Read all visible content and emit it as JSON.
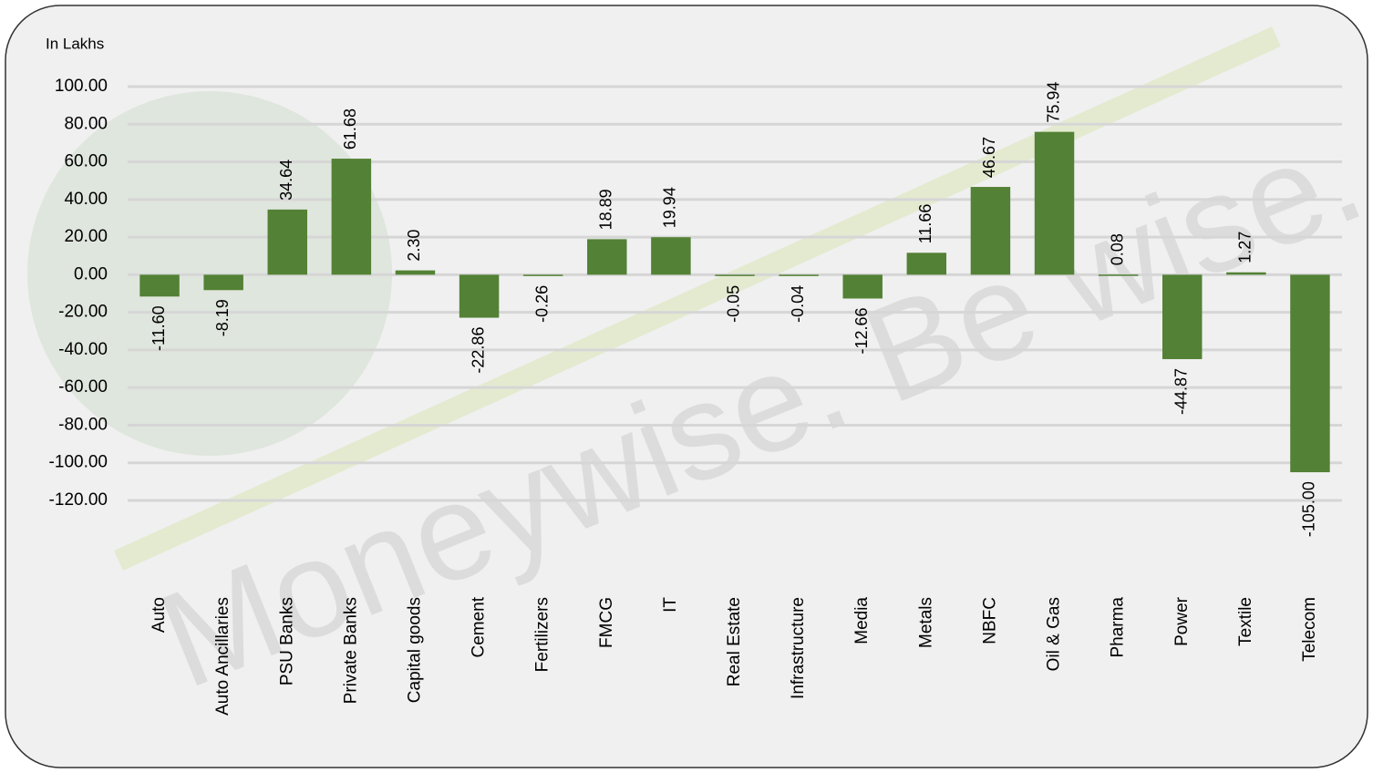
{
  "chart_data": {
    "type": "bar",
    "watermark": "Moneywise. Be wise.",
    "y_label": "In Lakhs",
    "categories": [
      "Auto",
      "Auto Ancillaries",
      "PSU Banks",
      "Private Banks",
      "Capital goods",
      "Cement",
      "Fertilizers",
      "FMCG",
      "IT",
      "Real Estate",
      "Infrastructure",
      "Media",
      "Metals",
      "NBFC",
      "Oil & Gas",
      "Pharma",
      "Power",
      "Textile",
      "Telecom"
    ],
    "values": [
      -11.6,
      -8.19,
      34.64,
      61.68,
      2.3,
      -22.86,
      -0.26,
      18.89,
      19.94,
      -0.05,
      -0.04,
      -12.66,
      11.66,
      46.67,
      75.94,
      0.08,
      -44.87,
      1.27,
      -105
    ],
    "value_labels": [
      "-11.60",
      "-8.19",
      "34.64",
      "61.68",
      "2.30",
      "-22.86",
      "-0.26",
      "18.89",
      "19.94",
      "-0.05",
      "-0.04",
      "-12.66",
      "11.66",
      "46.67",
      "75.94",
      "0.08",
      "-44.87",
      "1.27",
      "-105.00"
    ],
    "color": "#538135",
    "ylim": [
      -120,
      100
    ],
    "yticks": [
      {
        "value": 100,
        "label": "100.00"
      },
      {
        "value": 80,
        "label": "80.00"
      },
      {
        "value": 60,
        "label": "60.00"
      },
      {
        "value": 40,
        "label": "40.00"
      },
      {
        "value": 20,
        "label": "20.00"
      },
      {
        "value": 0,
        "label": "0.00"
      },
      {
        "value": -20,
        "label": "-20.00"
      },
      {
        "value": -40,
        "label": "-40.00"
      },
      {
        "value": -60,
        "label": "-60.00"
      },
      {
        "value": -80,
        "label": "-80.00"
      },
      {
        "value": -100,
        "label": "-100.00"
      },
      {
        "value": -120,
        "label": "-120.00"
      }
    ],
    "grid": true
  }
}
